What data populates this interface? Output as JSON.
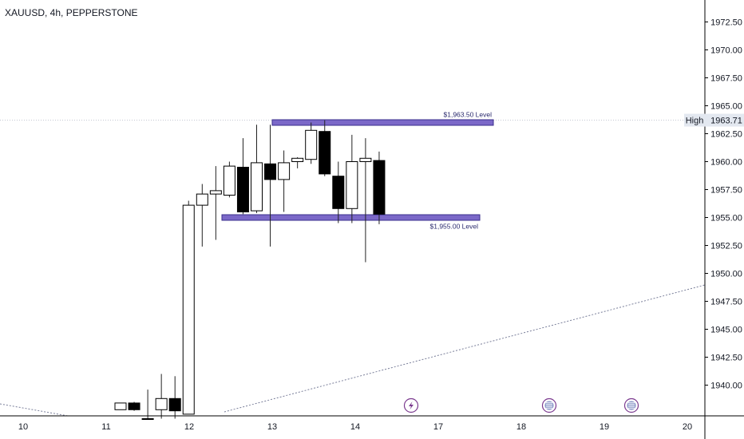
{
  "chart_data": {
    "type": "candlestick",
    "title": "XAUUSD, 4h, PEPPERSTONE",
    "ylim": [
      1936.7,
      1973.5
    ],
    "y_ticks": [
      "1972.50",
      "1970.00",
      "1967.50",
      "1965.00",
      "1962.50",
      "1960.00",
      "1957.50",
      "1955.00",
      "1952.50",
      "1950.00",
      "1947.50",
      "1945.00",
      "1942.50",
      "1940.00"
    ],
    "x_ticks": [
      "10",
      "11",
      "12",
      "13",
      "14",
      "17",
      "18",
      "19",
      "20"
    ],
    "high_label": "High",
    "high_value": "1963.71",
    "levels": [
      {
        "label": "$1,963.50 Level",
        "value": 1963.5
      },
      {
        "label": "$1,955.00 Level",
        "value": 1955.0
      }
    ],
    "candles": [
      {
        "o": 1937.8,
        "h": 1938.4,
        "l": 1937.8,
        "c": 1938.4
      },
      {
        "o": 1938.4,
        "h": 1938.5,
        "l": 1937.7,
        "c": 1937.8
      },
      {
        "o": 1937.0,
        "h": 1939.6,
        "l": 1937.0,
        "c": 1937.0
      },
      {
        "o": 1937.8,
        "h": 1941.0,
        "l": 1937.0,
        "c": 1938.8
      },
      {
        "o": 1938.8,
        "h": 1940.8,
        "l": 1937.0,
        "c": 1937.7
      },
      {
        "o": 1937.4,
        "h": 1956.5,
        "l": 1937.4,
        "c": 1956.1
      },
      {
        "o": 1956.1,
        "h": 1958.0,
        "l": 1952.4,
        "c": 1957.1
      },
      {
        "o": 1957.1,
        "h": 1959.6,
        "l": 1953.0,
        "c": 1957.4
      },
      {
        "o": 1957.0,
        "h": 1960.0,
        "l": 1956.8,
        "c": 1959.6
      },
      {
        "o": 1959.5,
        "h": 1962.1,
        "l": 1955.3,
        "c": 1955.5
      },
      {
        "o": 1955.6,
        "h": 1963.3,
        "l": 1955.4,
        "c": 1959.9
      },
      {
        "o": 1959.8,
        "h": 1963.3,
        "l": 1952.4,
        "c": 1958.4
      },
      {
        "o": 1958.4,
        "h": 1961.0,
        "l": 1955.5,
        "c": 1959.9
      },
      {
        "o": 1960.0,
        "h": 1960.4,
        "l": 1959.4,
        "c": 1960.3
      },
      {
        "o": 1960.2,
        "h": 1963.5,
        "l": 1959.8,
        "c": 1962.8
      },
      {
        "o": 1962.7,
        "h": 1963.7,
        "l": 1958.7,
        "c": 1958.9
      },
      {
        "o": 1958.7,
        "h": 1960.0,
        "l": 1954.5,
        "c": 1955.8
      },
      {
        "o": 1955.8,
        "h": 1962.4,
        "l": 1954.5,
        "c": 1960.0
      },
      {
        "o": 1960.0,
        "h": 1962.1,
        "l": 1951.0,
        "c": 1960.3
      },
      {
        "o": 1960.1,
        "h": 1960.9,
        "l": 1954.4,
        "c": 1955.3
      }
    ],
    "colors": {
      "background": "#ffffff",
      "up_body": "#ffffff",
      "down_body": "#000000",
      "wick": "#222222",
      "level_band": "#7b68c8",
      "level_border": "#3a2e8c",
      "trend": "#7a7f9a",
      "crosshair": "#c4c8d2",
      "axis_text": "#131722",
      "high_badge": "#e3e8f0"
    },
    "event_icons": [
      "lightning-event-icon",
      "economic-event-icon",
      "economic-event-icon"
    ]
  }
}
